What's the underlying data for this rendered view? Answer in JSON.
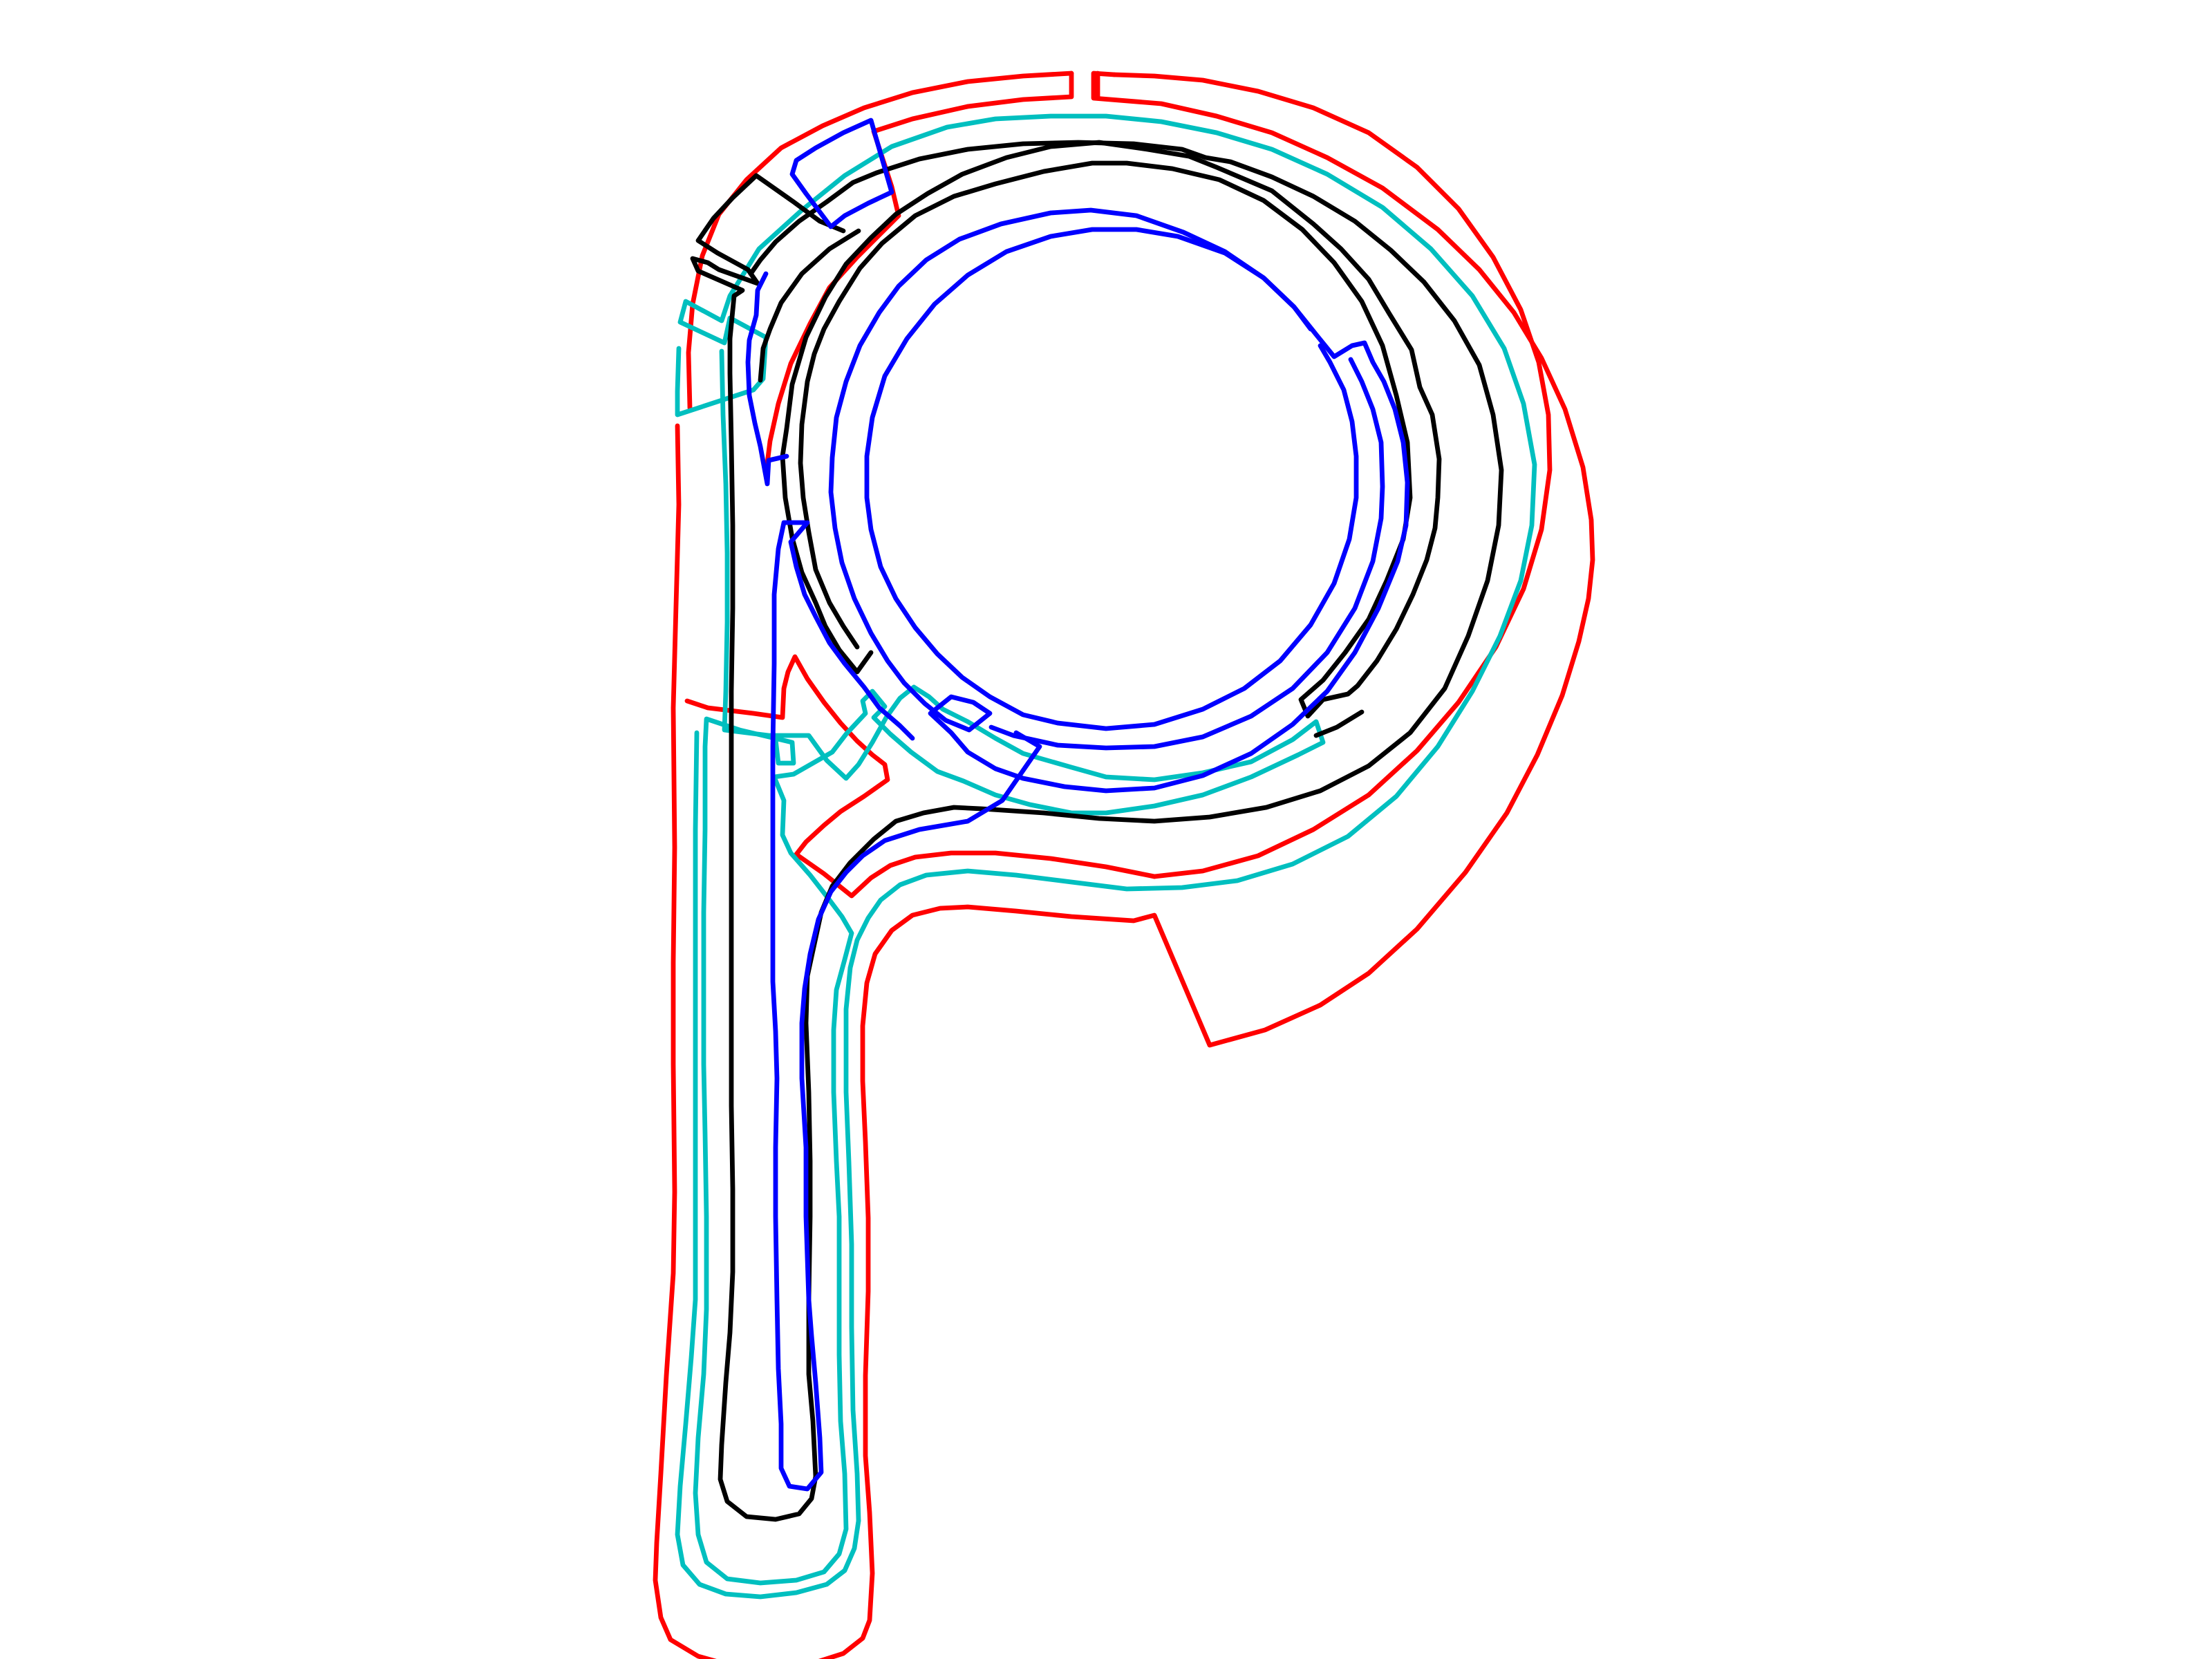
{
  "figure": {
    "description_free": true,
    "background": "#ffffff",
    "colors": {
      "outer": "#ff0000",
      "second": "#00bfbf",
      "third": "#000000",
      "inner": "#0000ff"
    }
  }
}
